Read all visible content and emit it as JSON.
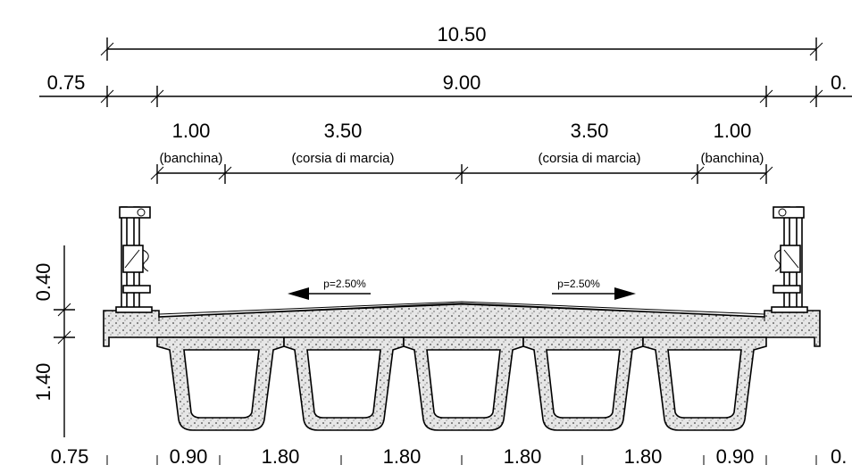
{
  "dimensions": {
    "overall": "10.50",
    "left_edge": "0.75",
    "carriageway": "9.00",
    "right_edge_partial": "0.",
    "shoulder_left": "1.00",
    "shoulder_left_note": "(banchina)",
    "lane_left": "3.50",
    "lane_left_note": "(corsia di marcia)",
    "lane_right": "3.50",
    "lane_right_note": "(corsia di marcia)",
    "shoulder_right": "1.00",
    "shoulder_right_note": "(banchina)",
    "slab_height": "0.40",
    "beam_height": "1.40"
  },
  "slopes": {
    "left": "p=2.50%",
    "right": "p=2.50%"
  },
  "bottom_dimensions": {
    "left_edge": "0.75",
    "b1": "0.90",
    "b2": "1.80",
    "b3": "1.80",
    "b4": "1.80",
    "b5": "1.80",
    "b6": "0.90",
    "right_edge_partial": "0."
  }
}
